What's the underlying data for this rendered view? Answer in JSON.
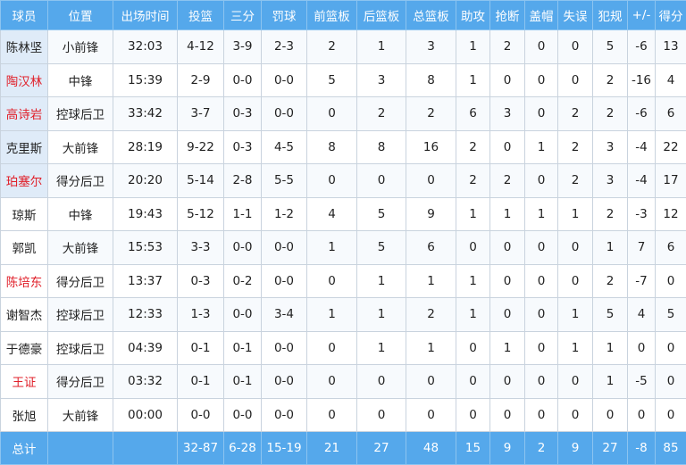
{
  "headers": [
    "球员",
    "位置",
    "出场时间",
    "投篮",
    "三分",
    "罚球",
    "前篮板",
    "后篮板",
    "总篮板",
    "助攻",
    "抢断",
    "盖帽",
    "失误",
    "犯规",
    "+/-",
    "得分"
  ],
  "accent_color": "#55a8eb",
  "highlight_name_color": "#e0202a",
  "players": [
    {
      "name": "陈林坚",
      "red": false,
      "starter": true,
      "stats": [
        "小前锋",
        "32:03",
        "4-12",
        "3-9",
        "2-3",
        "2",
        "1",
        "3",
        "1",
        "2",
        "0",
        "0",
        "5",
        "-6",
        "13"
      ]
    },
    {
      "name": "陶汉林",
      "red": true,
      "starter": true,
      "stats": [
        "中锋",
        "15:39",
        "2-9",
        "0-0",
        "0-0",
        "5",
        "3",
        "8",
        "1",
        "0",
        "0",
        "0",
        "2",
        "-16",
        "4"
      ]
    },
    {
      "name": "高诗岩",
      "red": true,
      "starter": true,
      "stats": [
        "控球后卫",
        "33:42",
        "3-7",
        "0-3",
        "0-0",
        "0",
        "2",
        "2",
        "6",
        "3",
        "0",
        "2",
        "2",
        "-6",
        "6"
      ]
    },
    {
      "name": "克里斯",
      "red": false,
      "starter": true,
      "stats": [
        "大前锋",
        "28:19",
        "9-22",
        "0-3",
        "4-5",
        "8",
        "8",
        "16",
        "2",
        "0",
        "1",
        "2",
        "3",
        "-4",
        "22"
      ]
    },
    {
      "name": "珀塞尔",
      "red": true,
      "starter": true,
      "stats": [
        "得分后卫",
        "20:20",
        "5-14",
        "2-8",
        "5-5",
        "0",
        "0",
        "0",
        "2",
        "2",
        "0",
        "2",
        "3",
        "-4",
        "17"
      ]
    },
    {
      "name": "琼斯",
      "red": false,
      "starter": false,
      "stats": [
        "中锋",
        "19:43",
        "5-12",
        "1-1",
        "1-2",
        "4",
        "5",
        "9",
        "1",
        "1",
        "1",
        "1",
        "2",
        "-3",
        "12"
      ]
    },
    {
      "name": "郭凯",
      "red": false,
      "starter": false,
      "stats": [
        "大前锋",
        "15:53",
        "3-3",
        "0-0",
        "0-0",
        "1",
        "5",
        "6",
        "0",
        "0",
        "0",
        "0",
        "1",
        "7",
        "6"
      ]
    },
    {
      "name": "陈培东",
      "red": true,
      "starter": false,
      "stats": [
        "得分后卫",
        "13:37",
        "0-3",
        "0-2",
        "0-0",
        "0",
        "1",
        "1",
        "1",
        "0",
        "0",
        "0",
        "2",
        "-7",
        "0"
      ]
    },
    {
      "name": "谢智杰",
      "red": false,
      "starter": false,
      "stats": [
        "控球后卫",
        "12:33",
        "1-3",
        "0-0",
        "3-4",
        "1",
        "1",
        "2",
        "1",
        "0",
        "0",
        "1",
        "5",
        "4",
        "5"
      ]
    },
    {
      "name": "于德豪",
      "red": false,
      "starter": false,
      "stats": [
        "控球后卫",
        "04:39",
        "0-1",
        "0-1",
        "0-0",
        "0",
        "1",
        "1",
        "0",
        "1",
        "0",
        "1",
        "1",
        "0",
        "0"
      ]
    },
    {
      "name": "王证",
      "red": true,
      "starter": false,
      "stats": [
        "得分后卫",
        "03:32",
        "0-1",
        "0-1",
        "0-0",
        "0",
        "0",
        "0",
        "0",
        "0",
        "0",
        "0",
        "1",
        "-5",
        "0"
      ]
    },
    {
      "name": "张旭",
      "red": false,
      "starter": false,
      "stats": [
        "大前锋",
        "00:00",
        "0-0",
        "0-0",
        "0-0",
        "0",
        "0",
        "0",
        "0",
        "0",
        "0",
        "0",
        "0",
        "0",
        "0"
      ]
    }
  ],
  "totals": {
    "label": "总计",
    "stats": [
      "",
      "",
      "32-87",
      "6-28",
      "15-19",
      "21",
      "27",
      "48",
      "15",
      "9",
      "2",
      "9",
      "27",
      "-8",
      "85"
    ]
  }
}
